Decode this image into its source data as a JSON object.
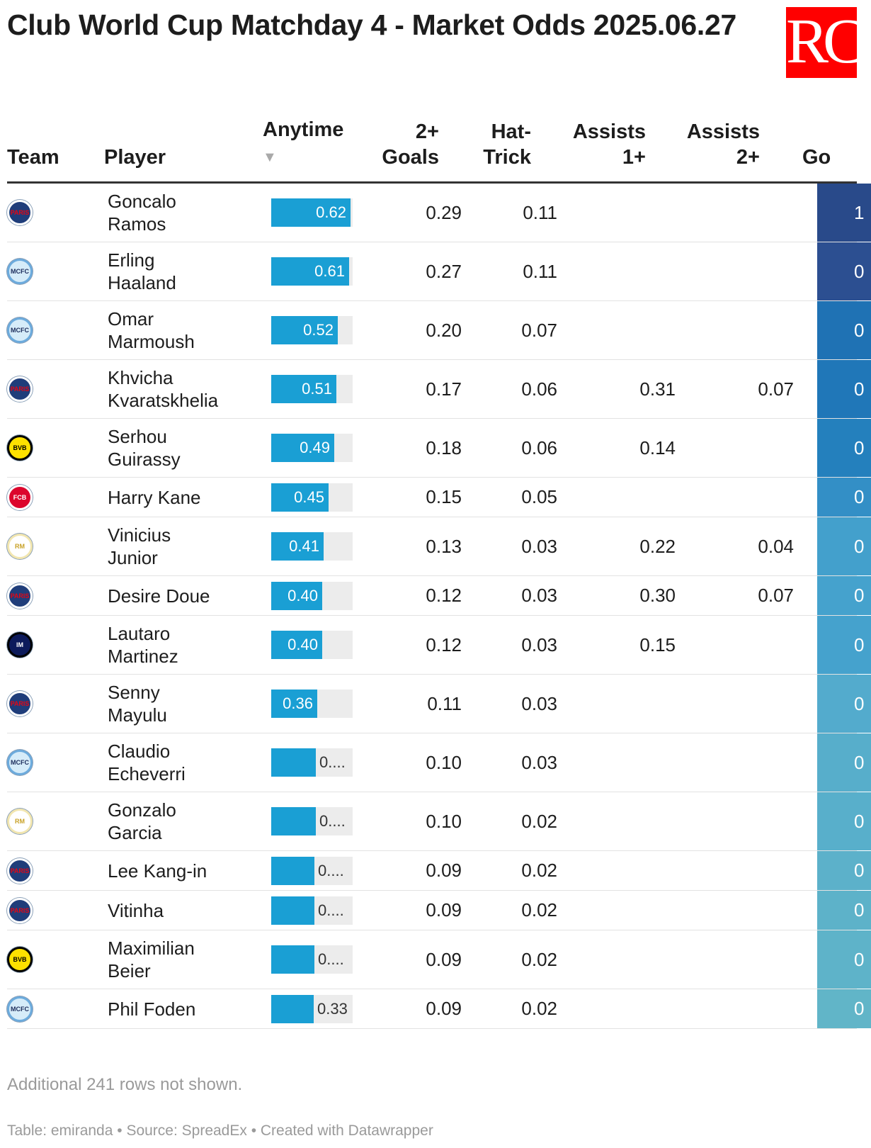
{
  "title": "Club World Cup Matchday 4 - Market Odds 2025.06.27",
  "logo": {
    "text": "RC",
    "color": "#ff0000"
  },
  "columns": {
    "team": "Team",
    "player": "Player",
    "anytime": "Anytime",
    "sort_icon": "▼",
    "goals2": "2+ Goals",
    "hattrick": "Hat-Trick",
    "assists1": "Assists 1+",
    "assists2": "Assists 2+",
    "go": "Go"
  },
  "teams": {
    "PSG": {
      "label": "PARIS",
      "bg": "#1f3d7a",
      "fg": "#e30613",
      "ring": "#ffffff"
    },
    "MCI": {
      "label": "MCFC",
      "bg": "#d6ecf9",
      "fg": "#1c2c5b",
      "ring": "#6cabdd"
    },
    "BVB": {
      "label": "BVB",
      "bg": "#fde100",
      "fg": "#000000",
      "ring": "#000000"
    },
    "FCB": {
      "label": "FCB",
      "bg": "#dc052d",
      "fg": "#ffffff",
      "ring": "#ffffff"
    },
    "RMA": {
      "label": "RM",
      "bg": "#ffffff",
      "fg": "#c9a227",
      "ring": "#f2e6b0"
    },
    "INT": {
      "label": "IM",
      "bg": "#0c1a5b",
      "fg": "#ffffff",
      "ring": "#000000"
    }
  },
  "chart_data": {
    "type": "table",
    "title": "Club World Cup Matchday 4 - Market Odds 2025.06.27",
    "columns": [
      "Team",
      "Player",
      "Anytime",
      "2+ Goals",
      "Hat-Trick",
      "Assists 1+",
      "Assists 2+",
      "Go"
    ],
    "bar_column": "Anytime",
    "bar_range": [
      0,
      0.62
    ],
    "rows": [
      {
        "team": "PSG",
        "player": "Goncalo Ramos",
        "anytime": 0.62,
        "anytime_label": "0.62",
        "goals2": "0.29",
        "hattrick": "0.11",
        "assists1": "",
        "assists2": "",
        "go": "1",
        "go_color": "#294a8a"
      },
      {
        "team": "MCI",
        "player": "Erling Haaland",
        "anytime": 0.61,
        "anytime_label": "0.61",
        "goals2": "0.27",
        "hattrick": "0.11",
        "assists1": "",
        "assists2": "",
        "go": "0",
        "go_color": "#2c4f91"
      },
      {
        "team": "MCI",
        "player": "Omar Marmoush",
        "anytime": 0.52,
        "anytime_label": "0.52",
        "goals2": "0.20",
        "hattrick": "0.07",
        "assists1": "",
        "assists2": "",
        "go": "0",
        "go_color": "#1f72b4"
      },
      {
        "team": "PSG",
        "player": "Khvicha Kvaratskhelia",
        "anytime": 0.51,
        "anytime_label": "0.51",
        "goals2": "0.17",
        "hattrick": "0.06",
        "assists1": "0.31",
        "assists2": "0.07",
        "go": "0",
        "go_color": "#2077b8"
      },
      {
        "team": "BVB",
        "player": "Serhou Guirassy",
        "anytime": 0.49,
        "anytime_label": "0.49",
        "goals2": "0.18",
        "hattrick": "0.06",
        "assists1": "0.14",
        "assists2": "",
        "go": "0",
        "go_color": "#2480bd"
      },
      {
        "team": "FCB",
        "player": "Harry Kane",
        "anytime": 0.45,
        "anytime_label": "0.45",
        "goals2": "0.15",
        "hattrick": "0.05",
        "assists1": "",
        "assists2": "",
        "go": "0",
        "go_color": "#338fc6"
      },
      {
        "team": "RMA",
        "player": "Vinicius Junior",
        "anytime": 0.41,
        "anytime_label": "0.41",
        "goals2": "0.13",
        "hattrick": "0.03",
        "assists1": "0.22",
        "assists2": "0.04",
        "go": "0",
        "go_color": "#43a0cc"
      },
      {
        "team": "PSG",
        "player": "Desire Doue",
        "anytime": 0.4,
        "anytime_label": "0.40",
        "goals2": "0.12",
        "hattrick": "0.03",
        "assists1": "0.30",
        "assists2": "0.07",
        "go": "0",
        "go_color": "#45a2cd"
      },
      {
        "team": "INT",
        "player": "Lautaro Martinez",
        "anytime": 0.4,
        "anytime_label": "0.40",
        "goals2": "0.12",
        "hattrick": "0.03",
        "assists1": "0.15",
        "assists2": "",
        "go": "0",
        "go_color": "#45a2cd"
      },
      {
        "team": "PSG",
        "player": "Senny Mayulu",
        "anytime": 0.36,
        "anytime_label": "0.36",
        "goals2": "0.11",
        "hattrick": "0.03",
        "assists1": "",
        "assists2": "",
        "go": "0",
        "go_color": "#53abcd"
      },
      {
        "team": "MCI",
        "player": "Claudio Echeverri",
        "anytime": 0.35,
        "anytime_label": "0....",
        "goals2": "0.10",
        "hattrick": "0.03",
        "assists1": "",
        "assists2": "",
        "go": "0",
        "go_color": "#57aecb"
      },
      {
        "team": "RMA",
        "player": "Gonzalo Garcia",
        "anytime": 0.35,
        "anytime_label": "0....",
        "goals2": "0.10",
        "hattrick": "0.02",
        "assists1": "",
        "assists2": "",
        "go": "0",
        "go_color": "#58afcb"
      },
      {
        "team": "PSG",
        "player": "Lee Kang-in",
        "anytime": 0.34,
        "anytime_label": "0....",
        "goals2": "0.09",
        "hattrick": "0.02",
        "assists1": "",
        "assists2": "",
        "go": "0",
        "go_color": "#5cb1ca"
      },
      {
        "team": "PSG",
        "player": "Vitinha",
        "anytime": 0.34,
        "anytime_label": "0....",
        "goals2": "0.09",
        "hattrick": "0.02",
        "assists1": "",
        "assists2": "",
        "go": "0",
        "go_color": "#5db2c9"
      },
      {
        "team": "BVB",
        "player": "Maximilian Beier",
        "anytime": 0.34,
        "anytime_label": "0....",
        "goals2": "0.09",
        "hattrick": "0.02",
        "assists1": "",
        "assists2": "",
        "go": "0",
        "go_color": "#5eb3c9"
      },
      {
        "team": "MCI",
        "player": "Phil Foden",
        "anytime": 0.33,
        "anytime_label": "0.33",
        "goals2": "0.09",
        "hattrick": "0.02",
        "assists1": "",
        "assists2": "",
        "go": "0",
        "go_color": "#61b5c8"
      }
    ]
  },
  "footer": {
    "rows_note": "Additional 241 rows not shown.",
    "credit": "Table: emiranda • Source: SpreadEx • Created with Datawrapper"
  }
}
